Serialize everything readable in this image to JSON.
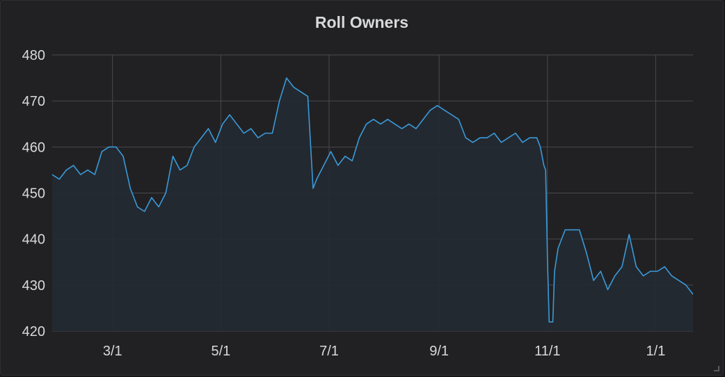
{
  "panel": {
    "title": "Roll Owners"
  },
  "chart_data": {
    "type": "area",
    "title": "Roll Owners",
    "xlabel": "",
    "ylabel": "",
    "ylim": [
      420,
      480
    ],
    "yticks": [
      420,
      430,
      440,
      450,
      460,
      470,
      480
    ],
    "xlim": [
      "2018-01-26",
      "2019-01-22"
    ],
    "xticks": [
      {
        "date": "2018-03-01",
        "label": "3/1"
      },
      {
        "date": "2018-05-01",
        "label": "5/1"
      },
      {
        "date": "2018-07-01",
        "label": "7/1"
      },
      {
        "date": "2018-09-01",
        "label": "9/1"
      },
      {
        "date": "2018-11-01",
        "label": "11/1"
      },
      {
        "date": "2019-01-01",
        "label": "1/1"
      }
    ],
    "grid": true,
    "colors": {
      "line": "#3a9ad9",
      "fill": "#242a33"
    },
    "series": [
      {
        "x": [
          "2018-01-26",
          "2018-01-30",
          "2018-02-03",
          "2018-02-07",
          "2018-02-11",
          "2018-02-15",
          "2018-02-19",
          "2018-02-23",
          "2018-02-27",
          "2018-03-03",
          "2018-03-07",
          "2018-03-11",
          "2018-03-15",
          "2018-03-19",
          "2018-03-23",
          "2018-03-27",
          "2018-03-31",
          "2018-04-04",
          "2018-04-08",
          "2018-04-12",
          "2018-04-16",
          "2018-04-20",
          "2018-04-24",
          "2018-04-28",
          "2018-05-02",
          "2018-05-06",
          "2018-05-10",
          "2018-05-14",
          "2018-05-18",
          "2018-05-22",
          "2018-05-26",
          "2018-05-30",
          "2018-06-03",
          "2018-06-07",
          "2018-06-11",
          "2018-06-15",
          "2018-06-19",
          "2018-06-22",
          "2018-06-24",
          "2018-06-28",
          "2018-07-02",
          "2018-07-06",
          "2018-07-10",
          "2018-07-14",
          "2018-07-18",
          "2018-07-22",
          "2018-07-26",
          "2018-07-30",
          "2018-08-03",
          "2018-08-07",
          "2018-08-11",
          "2018-08-15",
          "2018-08-19",
          "2018-08-23",
          "2018-08-27",
          "2018-08-31",
          "2018-09-04",
          "2018-09-08",
          "2018-09-12",
          "2018-09-16",
          "2018-09-20",
          "2018-09-24",
          "2018-09-28",
          "2018-10-02",
          "2018-10-06",
          "2018-10-10",
          "2018-10-14",
          "2018-10-18",
          "2018-10-22",
          "2018-10-26",
          "2018-10-28",
          "2018-10-30",
          "2018-10-31",
          "2018-11-01",
          "2018-11-02",
          "2018-11-04",
          "2018-11-05",
          "2018-11-07",
          "2018-11-11",
          "2018-11-15",
          "2018-11-19",
          "2018-11-23",
          "2018-11-27",
          "2018-12-01",
          "2018-12-05",
          "2018-12-09",
          "2018-12-13",
          "2018-12-17",
          "2018-12-21",
          "2018-12-25",
          "2018-12-29",
          "2019-01-02",
          "2019-01-06",
          "2019-01-10",
          "2019-01-14",
          "2019-01-18",
          "2019-01-22"
        ],
        "values": [
          454,
          453,
          455,
          456,
          454,
          455,
          454,
          459,
          460,
          460,
          458,
          451,
          447,
          446,
          449,
          447,
          450,
          458,
          455,
          456,
          460,
          462,
          464,
          461,
          465,
          467,
          465,
          463,
          464,
          462,
          463,
          463,
          470,
          475,
          473,
          472,
          471,
          451,
          453,
          456,
          459,
          456,
          458,
          457,
          462,
          465,
          466,
          465,
          466,
          465,
          464,
          465,
          464,
          466,
          468,
          469,
          468,
          467,
          466,
          462,
          461,
          462,
          462,
          463,
          461,
          462,
          463,
          461,
          462,
          462,
          460,
          456,
          455,
          436,
          422,
          422,
          433,
          438,
          442,
          442,
          442,
          437,
          431,
          433,
          429,
          432,
          434,
          441,
          434,
          432,
          433,
          433,
          434,
          432,
          431,
          430,
          428
        ]
      }
    ]
  }
}
